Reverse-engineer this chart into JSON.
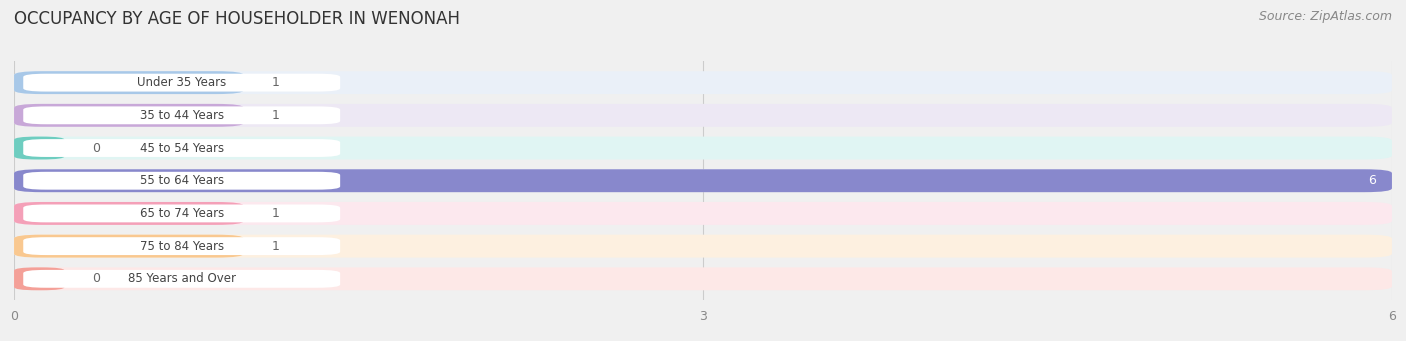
{
  "title": "OCCUPANCY BY AGE OF HOUSEHOLDER IN WENONAH",
  "source": "Source: ZipAtlas.com",
  "categories": [
    "Under 35 Years",
    "35 to 44 Years",
    "45 to 54 Years",
    "55 to 64 Years",
    "65 to 74 Years",
    "75 to 84 Years",
    "85 Years and Over"
  ],
  "values": [
    1,
    1,
    0,
    6,
    1,
    1,
    0
  ],
  "bar_colors": [
    "#a8c8e8",
    "#c8a8d8",
    "#6ecdc0",
    "#8888cc",
    "#f4a0b8",
    "#f9c890",
    "#f4a098"
  ],
  "bar_bg_colors": [
    "#eaf0f8",
    "#ede8f4",
    "#e0f5f3",
    "#eaeaf5",
    "#fce8ee",
    "#fdf0e0",
    "#fde8e7"
  ],
  "xlim": [
    0,
    6
  ],
  "xticks": [
    0,
    3,
    6
  ],
  "background_color": "#f0f0f0",
  "chart_bg": "#ffffff",
  "title_fontsize": 12,
  "source_fontsize": 9,
  "bar_height": 0.7,
  "label_pill_color": "#ffffff",
  "label_text_color": "#444444",
  "value_inside_color": "#ffffff",
  "value_outside_color": "#666666",
  "grid_color": "#cccccc",
  "tick_color": "#888888"
}
